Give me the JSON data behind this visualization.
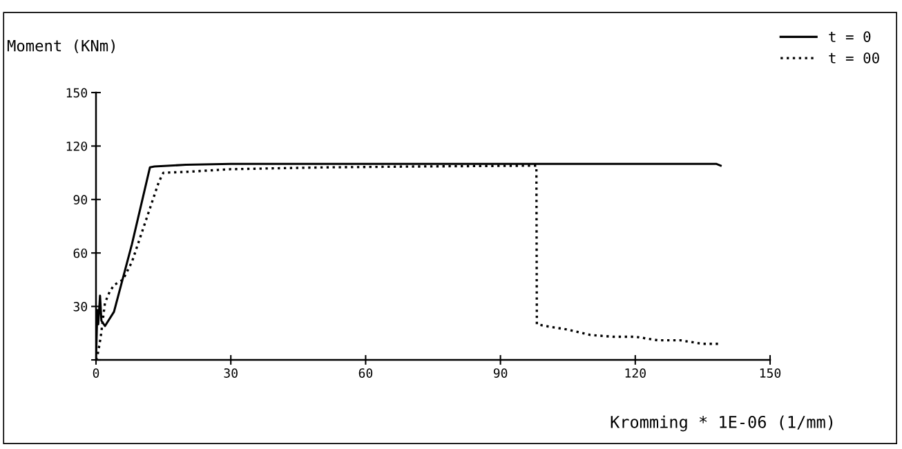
{
  "chart_data": {
    "type": "line",
    "xlabel": "Kromming * 1E-06 (1/mm)",
    "ylabel": "Moment (KNm)",
    "xlim": [
      0,
      150
    ],
    "ylim": [
      0,
      150
    ],
    "xticks": [
      0,
      30,
      60,
      90,
      120,
      150
    ],
    "yticks": [
      {
        "value": 0,
        "label": null
      },
      30,
      60,
      90,
      120,
      150
    ],
    "grid": false,
    "legend": "top right",
    "marker": "none",
    "series": [
      {
        "name": "t = 0",
        "color": "#000000",
        "line_style": "solid",
        "x": [
          0,
          0.3,
          0.5,
          0.9,
          1.2,
          2,
          4,
          8,
          12,
          13,
          20,
          30,
          60,
          90,
          120,
          138,
          139
        ],
        "values": [
          0,
          28,
          20,
          36,
          22,
          19,
          27,
          65,
          108,
          108.5,
          109.5,
          110,
          110,
          110,
          110,
          110,
          109
        ]
      },
      {
        "name": "t = 00",
        "color": "#000000",
        "line_style": "dotted",
        "x": [
          0,
          0.3,
          1,
          2,
          3,
          4,
          6,
          8,
          10,
          12,
          14,
          15,
          20,
          30,
          50,
          70,
          98,
          98.1,
          100,
          105,
          110,
          115,
          120,
          125,
          130,
          135,
          139
        ],
        "values": [
          0,
          2,
          12,
          32,
          38,
          42,
          45,
          55,
          70,
          85,
          100,
          105,
          105.5,
          107,
          108,
          108.5,
          109,
          20,
          19,
          17,
          14,
          13,
          13,
          11,
          11,
          9,
          9
        ]
      }
    ]
  }
}
